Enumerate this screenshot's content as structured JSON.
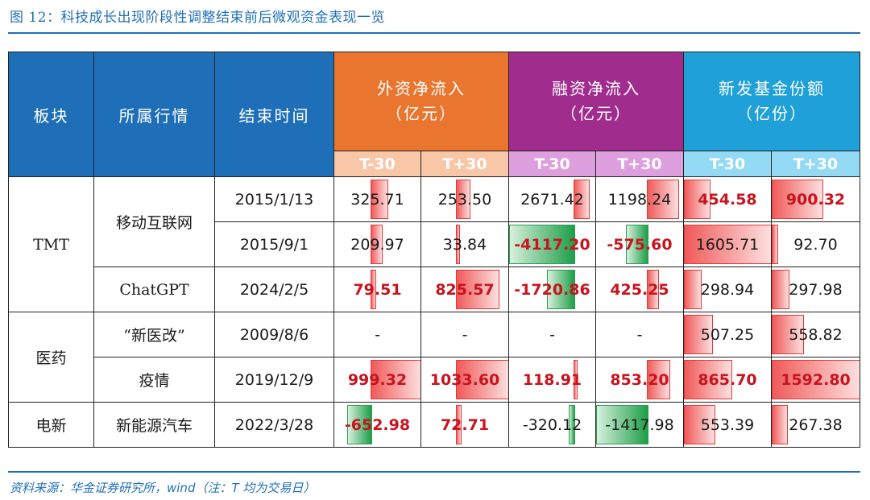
{
  "figure_title": "图 12：科技成长出现阶段性调整结束前后微观资金表现一览",
  "source_note": "资料来源：华金证券研究所，wind（注：T 均为交易日）",
  "header": {
    "col_sector": "板块",
    "col_theme": "所属行情",
    "col_end": "结束时间",
    "group_foreign": [
      "外资净流入",
      "（亿元）"
    ],
    "group_margin": [
      "融资净流入",
      "（亿元）"
    ],
    "group_fund": [
      "新发基金份额",
      "（亿份）"
    ],
    "sub_minus": "T-30",
    "sub_plus": "T+30"
  },
  "colors": {
    "header_blue": "#1f6fb8",
    "foreign_orange": "#e9752f",
    "margin_purple": "#a02d8e",
    "fund_sky": "#1fa0d8",
    "positive_red": "#c8141e",
    "negative_green": "#1d9e48"
  },
  "rows": [
    {
      "sector": "TMT",
      "theme": "移动互联网",
      "date": "2015/1/13",
      "cells": [
        {
          "text": "325.71",
          "value": 325.71,
          "bold": false
        },
        {
          "text": "253.50",
          "value": 253.5,
          "bold": false
        },
        {
          "text": "2671.42",
          "value": 2671.42,
          "bold": false
        },
        {
          "text": "1198.24",
          "value": 1198.24,
          "bold": false
        },
        {
          "text": "454.58",
          "value": 454.58,
          "bold": true
        },
        {
          "text": "900.32",
          "value": 900.32,
          "bold": true
        }
      ]
    },
    {
      "sector": "TMT",
      "theme": "移动互联网",
      "date": "2015/9/1",
      "cells": [
        {
          "text": "209.97",
          "value": 209.97,
          "bold": false
        },
        {
          "text": "33.84",
          "value": 33.84,
          "bold": false
        },
        {
          "text": "-4117.20",
          "value": -4117.2,
          "bold": true
        },
        {
          "text": "-575.60",
          "value": -575.6,
          "bold": true
        },
        {
          "text": "1605.71",
          "value": 1605.71,
          "bold": false
        },
        {
          "text": "92.70",
          "value": 92.7,
          "bold": false
        }
      ]
    },
    {
      "sector": "TMT",
      "theme": "ChatGPT",
      "date": "2024/2/5",
      "cells": [
        {
          "text": "79.51",
          "value": 79.51,
          "bold": true
        },
        {
          "text": "825.57",
          "value": 825.57,
          "bold": true
        },
        {
          "text": "-1720.86",
          "value": -1720.86,
          "bold": true
        },
        {
          "text": "425.25",
          "value": 425.25,
          "bold": true
        },
        {
          "text": "298.94",
          "value": 298.94,
          "bold": false
        },
        {
          "text": "297.98",
          "value": 297.98,
          "bold": false
        }
      ]
    },
    {
      "sector": "医药",
      "theme": "“新医改”",
      "date": "2009/8/6",
      "cells": [
        {
          "text": "-",
          "value": null,
          "bold": false
        },
        {
          "text": "-",
          "value": null,
          "bold": false
        },
        {
          "text": "-",
          "value": null,
          "bold": false
        },
        {
          "text": "-",
          "value": null,
          "bold": false
        },
        {
          "text": "507.25",
          "value": 507.25,
          "bold": false
        },
        {
          "text": "558.82",
          "value": 558.82,
          "bold": false
        }
      ]
    },
    {
      "sector": "医药",
      "theme": "疫情",
      "date": "2019/12/9",
      "cells": [
        {
          "text": "999.32",
          "value": 999.32,
          "bold": true
        },
        {
          "text": "1033.60",
          "value": 1033.6,
          "bold": true
        },
        {
          "text": "118.91",
          "value": 118.91,
          "bold": true
        },
        {
          "text": "853.20",
          "value": 853.2,
          "bold": true
        },
        {
          "text": "865.70",
          "value": 865.7,
          "bold": true
        },
        {
          "text": "1592.80",
          "value": 1592.8,
          "bold": true
        }
      ]
    },
    {
      "sector": "电新",
      "theme": "新能源汽车",
      "date": "2022/3/28",
      "cells": [
        {
          "text": "-652.98",
          "value": -652.98,
          "bold": true
        },
        {
          "text": "72.71",
          "value": 72.71,
          "bold": true
        },
        {
          "text": "-320.12",
          "value": -320.12,
          "bold": false
        },
        {
          "text": "-1417.98",
          "value": -1417.98,
          "bold": false
        },
        {
          "text": "553.39",
          "value": 553.39,
          "bold": false
        },
        {
          "text": "267.38",
          "value": 267.38,
          "bold": false
        }
      ]
    }
  ]
}
